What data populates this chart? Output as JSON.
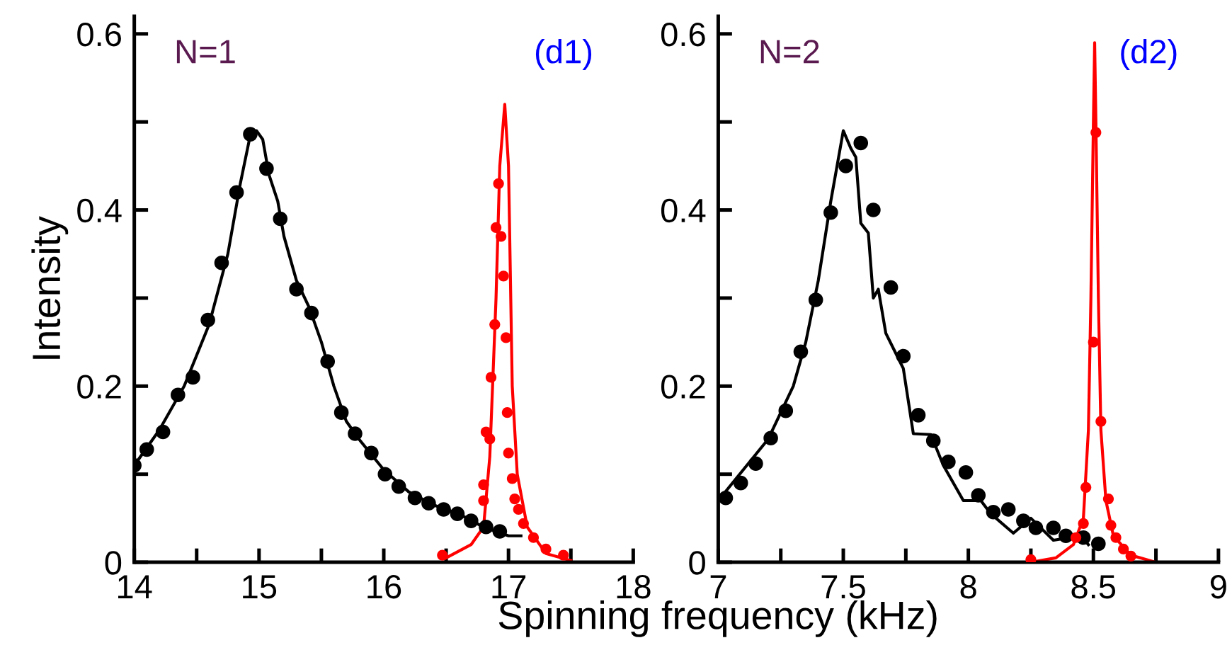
{
  "chart_data": [
    {
      "type": "scatter",
      "ylabel": "Intensity",
      "xlabel": "Spinning frequency (kHz)",
      "annotations": [
        "N=1",
        "(d1)"
      ],
      "xlim": [
        14,
        18
      ],
      "ylim": [
        0,
        0.62
      ],
      "xticks": [
        14,
        {
          "value": 14.5,
          "label": null
        },
        15,
        {
          "value": 15.5,
          "label": null
        },
        16,
        {
          "value": 16.5,
          "label": null
        },
        17,
        {
          "value": 17.5,
          "label": null
        },
        18
      ],
      "yticks": [
        0,
        {
          "value": 0.1,
          "label": null
        },
        0.2,
        {
          "value": 0.3,
          "label": null
        },
        0.4,
        {
          "value": 0.5,
          "label": null
        },
        0.6
      ],
      "grid": false,
      "legend": false,
      "series": [
        {
          "type": "line",
          "color": "#000000",
          "marker": "none",
          "x": [
            14.0,
            14.2,
            14.4,
            14.6,
            14.75,
            14.85,
            14.93,
            14.98,
            15.03,
            15.08,
            15.15,
            15.2,
            15.3,
            15.4,
            15.5,
            15.6,
            15.7,
            15.8,
            16.0,
            16.2,
            16.4,
            16.6,
            16.8,
            17.0,
            17.1
          ],
          "values": [
            0.11,
            0.15,
            0.2,
            0.27,
            0.35,
            0.43,
            0.485,
            0.49,
            0.48,
            0.44,
            0.41,
            0.37,
            0.32,
            0.29,
            0.25,
            0.2,
            0.16,
            0.14,
            0.105,
            0.08,
            0.065,
            0.055,
            0.04,
            0.03,
            0.03
          ]
        },
        {
          "color": "#000000",
          "marker": "circle",
          "x": [
            14.0,
            14.1,
            14.23,
            14.35,
            14.47,
            14.59,
            14.7,
            14.82,
            14.93,
            15.06,
            15.17,
            15.3,
            15.42,
            15.55,
            15.66,
            15.77,
            15.9,
            16.01,
            16.12,
            16.25,
            16.36,
            16.48,
            16.59,
            16.7,
            16.82,
            16.93
          ],
          "values": [
            0.11,
            0.128,
            0.148,
            0.19,
            0.21,
            0.275,
            0.34,
            0.42,
            0.486,
            0.447,
            0.39,
            0.31,
            0.283,
            0.228,
            0.17,
            0.146,
            0.124,
            0.1,
            0.086,
            0.073,
            0.067,
            0.06,
            0.055,
            0.047,
            0.04,
            0.035
          ]
        },
        {
          "type": "line",
          "color": "#ff0000",
          "marker": "none",
          "x": [
            16.5,
            16.7,
            16.8,
            16.85,
            16.9,
            16.93,
            16.97,
            17.0,
            17.03,
            17.07,
            17.15,
            17.3,
            17.5
          ],
          "values": [
            0.005,
            0.02,
            0.04,
            0.12,
            0.3,
            0.45,
            0.52,
            0.45,
            0.2,
            0.1,
            0.04,
            0.01,
            0.002
          ]
        },
        {
          "color": "#ff0000",
          "marker": "circle",
          "x": [
            16.47,
            16.8,
            16.8,
            16.82,
            16.85,
            16.86,
            16.89,
            16.9,
            16.92,
            16.94,
            16.96,
            16.98,
            16.99,
            17.0,
            17.03,
            17.05,
            17.08,
            17.12,
            17.2,
            17.3,
            17.44
          ],
          "values": [
            0.008,
            0.088,
            0.07,
            0.148,
            0.14,
            0.21,
            0.27,
            0.38,
            0.43,
            0.37,
            0.325,
            0.255,
            0.17,
            0.124,
            0.095,
            0.072,
            0.06,
            0.044,
            0.028,
            0.015,
            0.008
          ]
        }
      ]
    },
    {
      "type": "scatter",
      "annotations": [
        "N=2",
        "(d2)"
      ],
      "xlim": [
        7,
        9
      ],
      "ylim": [
        0,
        0.62
      ],
      "xticks": [
        7,
        {
          "value": 7.25,
          "label": null
        },
        7.5,
        {
          "value": 7.75,
          "label": null
        },
        8,
        {
          "value": 8.25,
          "label": null
        },
        8.5,
        {
          "value": 8.75,
          "label": null
        },
        9
      ],
      "yticks": [
        0,
        {
          "value": 0.1,
          "label": null
        },
        0.2,
        {
          "value": 0.3,
          "label": null
        },
        0.4,
        {
          "value": 0.5,
          "label": null
        },
        0.6
      ],
      "grid": false,
      "legend": false,
      "series": [
        {
          "type": "line",
          "color": "#000000",
          "marker": "none",
          "x": [
            7.0,
            7.2,
            7.3,
            7.35,
            7.4,
            7.45,
            7.5,
            7.53,
            7.55,
            7.57,
            7.6,
            7.62,
            7.64,
            7.67,
            7.74,
            7.78,
            7.85,
            7.9,
            7.98,
            8.05,
            8.09,
            8.18,
            8.25,
            8.34,
            8.45,
            8.48
          ],
          "values": [
            0.07,
            0.14,
            0.2,
            0.25,
            0.32,
            0.41,
            0.49,
            0.47,
            0.46,
            0.385,
            0.374,
            0.3,
            0.31,
            0.26,
            0.22,
            0.146,
            0.145,
            0.11,
            0.07,
            0.07,
            0.055,
            0.033,
            0.05,
            0.025,
            0.03,
            0.02
          ]
        },
        {
          "color": "#000000",
          "marker": "circle",
          "x": [
            7.03,
            7.09,
            7.15,
            7.21,
            7.27,
            7.33,
            7.39,
            7.45,
            7.51,
            7.57,
            7.62,
            7.69,
            7.74,
            7.8,
            7.86,
            7.92,
            7.99,
            8.04,
            8.1,
            8.16,
            8.22,
            8.27,
            8.34,
            8.39,
            8.46,
            8.52
          ],
          "values": [
            0.073,
            0.09,
            0.112,
            0.141,
            0.172,
            0.239,
            0.298,
            0.397,
            0.45,
            0.476,
            0.4,
            0.312,
            0.234,
            0.167,
            0.138,
            0.114,
            0.102,
            0.076,
            0.057,
            0.06,
            0.047,
            0.039,
            0.039,
            0.03,
            0.028,
            0.021
          ]
        },
        {
          "type": "line",
          "color": "#ff0000",
          "marker": "none",
          "x": [
            8.25,
            8.35,
            8.42,
            8.46,
            8.48,
            8.49,
            8.5,
            8.505,
            8.51,
            8.52,
            8.53,
            8.55,
            8.58,
            8.65,
            8.75
          ],
          "values": [
            0.0,
            0.005,
            0.02,
            0.05,
            0.15,
            0.3,
            0.5,
            0.59,
            0.5,
            0.3,
            0.15,
            0.07,
            0.03,
            0.008,
            0.0
          ]
        },
        {
          "color": "#ff0000",
          "marker": "circle",
          "x": [
            8.25,
            8.43,
            8.46,
            8.47,
            8.5,
            8.51,
            8.53,
            8.56,
            8.57,
            8.59,
            8.62,
            8.65
          ],
          "values": [
            0.003,
            0.028,
            0.044,
            0.085,
            0.25,
            0.488,
            0.16,
            0.072,
            0.042,
            0.028,
            0.015,
            0.007
          ]
        }
      ]
    }
  ]
}
